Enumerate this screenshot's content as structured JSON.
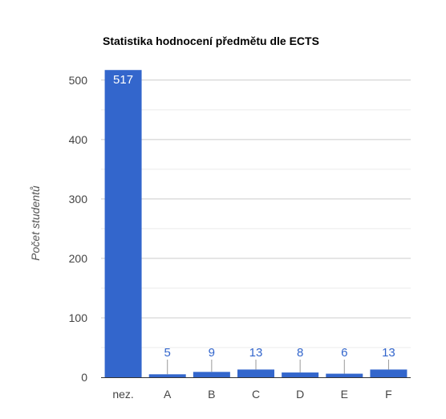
{
  "chart_data": {
    "type": "bar",
    "title": "Statistika hodnocení předmětu dle ECTS",
    "xlabel": "",
    "ylabel": "Počet studentů",
    "categories": [
      "nez.",
      "A",
      "B",
      "C",
      "D",
      "E",
      "F"
    ],
    "values": [
      517,
      5,
      9,
      13,
      8,
      6,
      13
    ],
    "ylim": [
      0,
      520
    ],
    "yticks": [
      0,
      100,
      200,
      300,
      400,
      500
    ],
    "grid": true,
    "legend": "none",
    "colors": {
      "bar": "#3366cc",
      "label_inside": "#ffffff",
      "label_outside": "#3366cc",
      "gridline": "#cccccc",
      "leader": "#999999"
    }
  }
}
